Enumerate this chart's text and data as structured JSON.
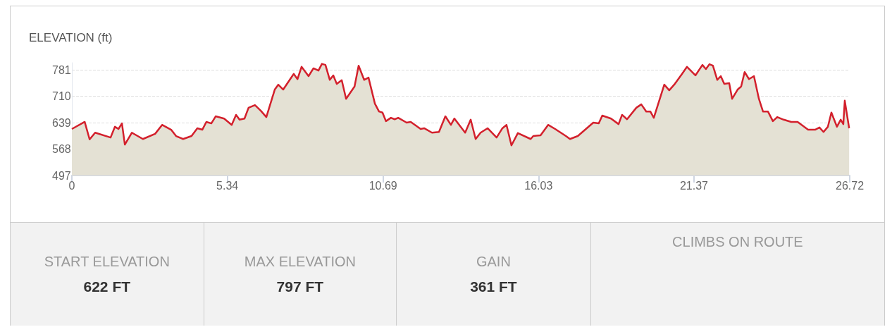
{
  "chart_data": {
    "type": "area",
    "title": "ELEVATION (ft)",
    "x": [
      0,
      0.44,
      0.61,
      0.8,
      1.33,
      1.48,
      1.6,
      1.72,
      1.82,
      2.06,
      2.44,
      2.86,
      3.1,
      3.41,
      3.58,
      3.82,
      4.11,
      4.31,
      4.48,
      4.62,
      4.79,
      4.94,
      5.23,
      5.49,
      5.64,
      5.76,
      5.93,
      6.07,
      6.29,
      6.49,
      6.68,
      6.97,
      7.09,
      7.26,
      7.5,
      7.62,
      7.75,
      7.89,
      8.13,
      8.3,
      8.47,
      8.59,
      8.71,
      8.86,
      8.98,
      9.1,
      9.27,
      9.42,
      9.56,
      9.71,
      9.85,
      10.04,
      10.19,
      10.41,
      10.55,
      10.67,
      10.79,
      10.96,
      11.09,
      11.21,
      11.5,
      11.64,
      11.98,
      12.1,
      12.37,
      12.61,
      12.83,
      13.02,
      13.14,
      13.51,
      13.7,
      13.87,
      14.04,
      14.28,
      14.59,
      14.79,
      14.93,
      15.1,
      15.32,
      15.76,
      15.85,
      16.1,
      16.36,
      16.6,
      16.97,
      17.11,
      17.38,
      17.91,
      18.1,
      18.22,
      18.52,
      18.78,
      18.9,
      19.07,
      19.39,
      19.56,
      19.73,
      19.87,
      19.99,
      20.35,
      20.52,
      20.69,
      20.94,
      21.13,
      21.42,
      21.66,
      21.78,
      21.9,
      22.02,
      22.17,
      22.29,
      22.41,
      22.58,
      22.68,
      22.87,
      22.99,
      23.11,
      23.26,
      23.43,
      23.6,
      23.74,
      23.91,
      24.08,
      24.23,
      24.45,
      24.71,
      24.93,
      25.29,
      25.53,
      25.68,
      25.82,
      25.97,
      26.09,
      26.28,
      26.41,
      26.5,
      26.55,
      26.7
    ],
    "series": [
      {
        "color": "#d3202c",
        "values": [
          622,
          641,
          594,
          612,
          599,
          628,
          622,
          637,
          580,
          612,
          595,
          609,
          633,
          620,
          603,
          595,
          603,
          624,
          620,
          641,
          637,
          656,
          650,
          633,
          660,
          647,
          650,
          679,
          686,
          671,
          654,
          728,
          741,
          728,
          756,
          770,
          756,
          789,
          764,
          785,
          779,
          797,
          794,
          754,
          766,
          743,
          753,
          703,
          719,
          736,
          792,
          754,
          760,
          690,
          669,
          666,
          643,
          652,
          648,
          652,
          639,
          641,
          622,
          624,
          612,
          614,
          656,
          633,
          650,
          612,
          647,
          595,
          612,
          624,
          599,
          624,
          633,
          578,
          611,
          595,
          603,
          605,
          633,
          622,
          603,
          595,
          603,
          639,
          637,
          658,
          650,
          635,
          660,
          648,
          679,
          688,
          669,
          669,
          652,
          741,
          726,
          741,
          768,
          789,
          766,
          794,
          783,
          796,
          792,
          754,
          764,
          743,
          745,
          703,
          728,
          736,
          775,
          756,
          764,
          703,
          669,
          669,
          643,
          654,
          647,
          641,
          641,
          620,
          620,
          626,
          614,
          628,
          666,
          628,
          647,
          635,
          698,
          624
        ]
      }
    ],
    "xlim": [
      0,
      26.72
    ],
    "xticks": [
      0,
      5.34,
      10.69,
      16.03,
      21.37,
      26.72
    ],
    "ylim": [
      497,
      800
    ],
    "yticks": [
      497,
      568,
      639,
      710,
      781
    ],
    "grid": "y",
    "marker": "none",
    "annotations": [
      "START ELEVATION",
      "622 FT",
      "MAX ELEVATION",
      "797 FT",
      "GAIN",
      "361 FT",
      "CLIMBS ON ROUTE"
    ]
  }
}
